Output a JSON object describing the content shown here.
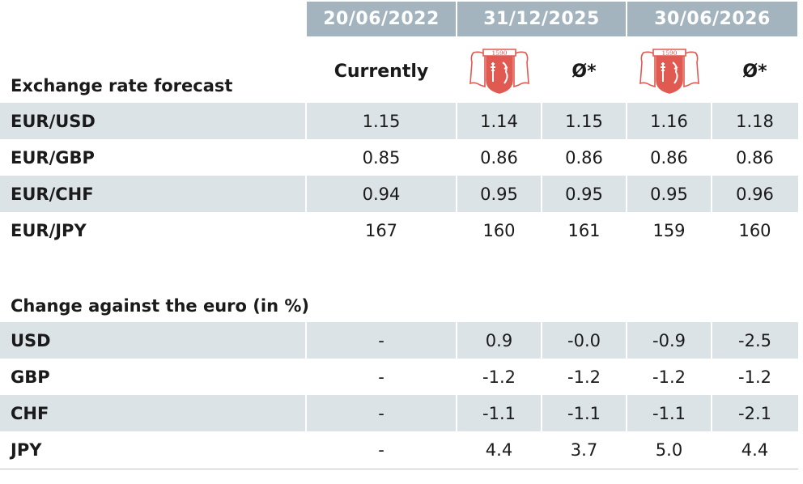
{
  "chart_data": {
    "type": "table",
    "header_dates": [
      "20/06/2022",
      "31/12/2025",
      "30/06/2026"
    ],
    "subheaders": {
      "current": "Currently",
      "average": "Ø*"
    },
    "logo": {
      "text": "1590",
      "color": "#e05a52"
    },
    "section_forecast": {
      "title": "Exchange rate forecast",
      "rows": [
        {
          "label": "EUR/USD",
          "values": [
            "1.15",
            "1.14",
            "1.15",
            "1.16",
            "1.18"
          ]
        },
        {
          "label": "EUR/GBP",
          "values": [
            "0.85",
            "0.86",
            "0.86",
            "0.86",
            "0.86"
          ]
        },
        {
          "label": "EUR/CHF",
          "values": [
            "0.94",
            "0.95",
            "0.95",
            "0.95",
            "0.96"
          ]
        },
        {
          "label": "EUR/JPY",
          "values": [
            "167",
            "160",
            "161",
            "159",
            "160"
          ]
        }
      ]
    },
    "section_change": {
      "title": "Change against the euro (in %)",
      "rows": [
        {
          "label": "USD",
          "values": [
            "-",
            "0.9",
            "-0.0",
            "-0.9",
            "-2.5"
          ]
        },
        {
          "label": "GBP",
          "values": [
            "-",
            "-1.2",
            "-1.2",
            "-1.2",
            "-1.2"
          ]
        },
        {
          "label": "CHF",
          "values": [
            "-",
            "-1.1",
            "-1.1",
            "-1.1",
            "-2.1"
          ]
        },
        {
          "label": "JPY",
          "values": [
            "-",
            "4.4",
            "3.7",
            "5.0",
            "4.4"
          ]
        }
      ]
    },
    "colors": {
      "header_bg": "#a3b4be",
      "band_bg": "#dce3e7",
      "accent_logo": "#e05a52"
    }
  }
}
